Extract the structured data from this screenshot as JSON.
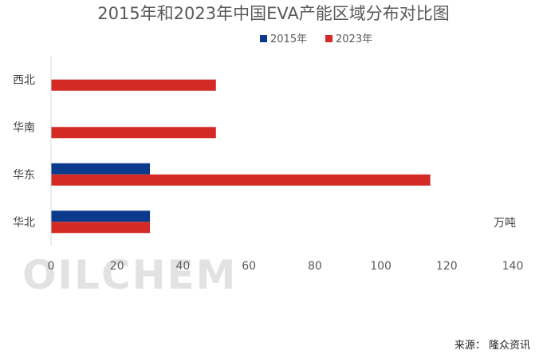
{
  "chart_data": {
    "type": "bar",
    "orientation": "horizontal",
    "title": "2015年和2023年中国EVA产能区域分布对比图",
    "categories": [
      "西北",
      "华南",
      "华东",
      "华北"
    ],
    "series": [
      {
        "name": "2015年",
        "values": [
          0,
          0,
          30,
          30
        ],
        "color": "#0b3a8c"
      },
      {
        "name": "2023年",
        "values": [
          50,
          50,
          115,
          30
        ],
        "color": "#d42a25"
      }
    ],
    "xlim": [
      0,
      140
    ],
    "xticks": [
      0,
      20,
      40,
      60,
      80,
      100,
      120,
      140
    ],
    "unit": "万吨",
    "legend_position": "top",
    "grid": false
  },
  "watermark": "OILCHEM",
  "source": "来源： 隆众资讯"
}
